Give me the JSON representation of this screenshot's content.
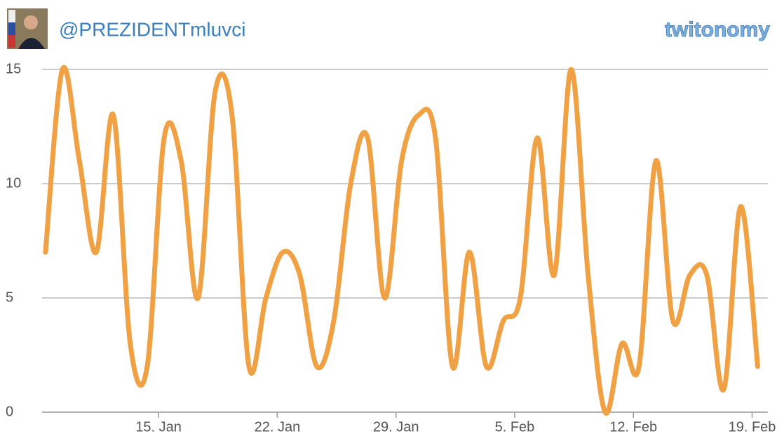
{
  "header": {
    "handle": "@PREZIDENTmluvci",
    "logo": "twitonomy"
  },
  "chart_data": {
    "type": "line",
    "categories": [
      null,
      null,
      null,
      null,
      null,
      null,
      null,
      null,
      null,
      null,
      null,
      null,
      null,
      null,
      null,
      null,
      null,
      null,
      null,
      null,
      null,
      null,
      null,
      null,
      null,
      null,
      null,
      null,
      null,
      null,
      null,
      null,
      null,
      null,
      null,
      null,
      null,
      null,
      null,
      null,
      null,
      null,
      null
    ],
    "series": [
      {
        "color": "#f0a143",
        "values": [
          7,
          15,
          11,
          7,
          13,
          3,
          2,
          12,
          11,
          5,
          14,
          13,
          2,
          5,
          7,
          6,
          2,
          4,
          10,
          12,
          5,
          11,
          13,
          12,
          2,
          7,
          2,
          4,
          5,
          12,
          6,
          15,
          6,
          0,
          3,
          2,
          11,
          4,
          6,
          6,
          1,
          9,
          2
        ]
      }
    ],
    "xlim": [
      -0.2,
      42.6
    ],
    "xticks": [
      {
        "value": 6.67,
        "label": "15. Jan"
      },
      {
        "value": 13.67,
        "label": "22. Jan"
      },
      {
        "value": 20.67,
        "label": "29. Jan"
      },
      {
        "value": 27.67,
        "label": "5. Feb"
      },
      {
        "value": 34.67,
        "label": "12. Feb"
      },
      {
        "value": 41.67,
        "label": "19. Feb"
      }
    ],
    "ylim": [
      0,
      15
    ],
    "yticks": [
      0,
      5,
      10,
      15
    ],
    "grid": true
  }
}
